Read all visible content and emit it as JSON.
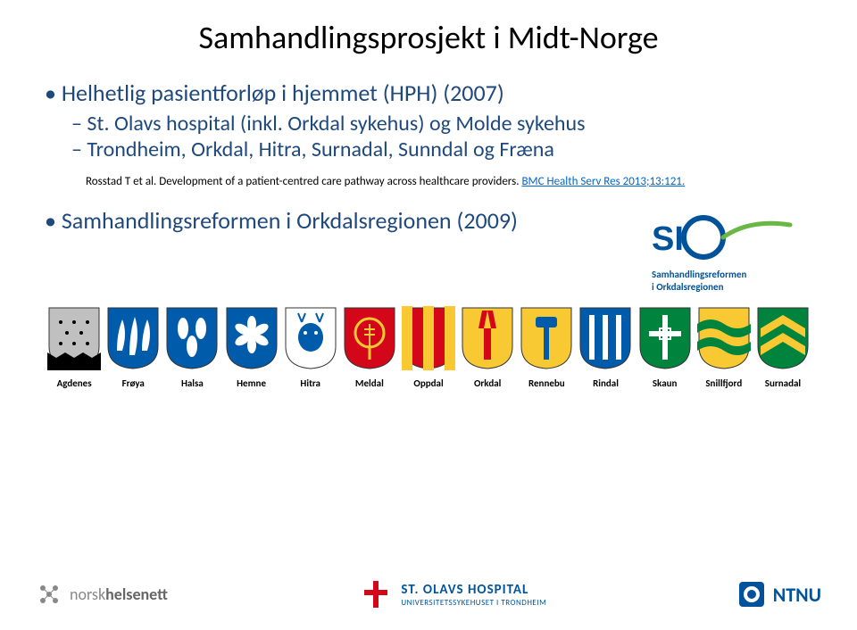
{
  "title": "Samhandlingsprosjekt i Midt-Norge",
  "main_bullet": "Helhetlig pasientforløp i hjemmet (HPH) (2007)",
  "sub1": "St. Olavs hospital (inkl. Orkdal sykehus) og Molde sykehus",
  "sub2": "Trondheim, Orkdal, Hitra, Surnadal, Sunndal og Fræna",
  "citation_plain": "Rosstad T et al. Development of a patient-centred care pathway across healthcare providers. ",
  "citation_link": "BMC Health Serv Res 2013;13:121.",
  "bullet2": "Samhandlingsreformen i Orkdalsregionen (2009)",
  "sio": {
    "line1": "Samhandlingsreformen",
    "line2": "i Orkdalsregionen"
  },
  "shields": [
    {
      "label": "Agdenes",
      "bg": "#c0c0c0",
      "fg": "#000000",
      "type": "dots"
    },
    {
      "label": "Frøya",
      "bg": "#005bab",
      "fg": "#ffffff",
      "type": "flames"
    },
    {
      "label": "Halsa",
      "bg": "#005bab",
      "fg": "#ffffff",
      "type": "leaves"
    },
    {
      "label": "Hemne",
      "bg": "#005bab",
      "fg": "#ffffff",
      "type": "flower"
    },
    {
      "label": "Hitra",
      "bg": "#ffffff",
      "fg": "#005bab",
      "type": "deer"
    },
    {
      "label": "Meldal",
      "bg": "#d4071a",
      "fg": "#f9c933",
      "type": "wheat"
    },
    {
      "label": "Oppdal",
      "bg": "#d4071a",
      "fg": "#f9c933",
      "type": "stripes"
    },
    {
      "label": "Orkdal",
      "bg": "#f9c933",
      "fg": "#d4071a",
      "type": "pall"
    },
    {
      "label": "Rennebu",
      "bg": "#f9c933",
      "fg": "#005bab",
      "type": "hammer"
    },
    {
      "label": "Rindal",
      "bg": "#005bab",
      "fg": "#ffffff",
      "type": "bars"
    },
    {
      "label": "Skaun",
      "bg": "#00843d",
      "fg": "#ffffff",
      "type": "cross"
    },
    {
      "label": "Snillfjord",
      "bg": "#f9c933",
      "fg": "#00843d",
      "type": "waves"
    },
    {
      "label": "Surnadal",
      "bg": "#00843d",
      "fg": "#f9c933",
      "type": "chevrons"
    }
  ],
  "footer": {
    "nhn_light": "norsk",
    "nhn_bold": "helsenett",
    "stolav_main": "ST. OLAVS HOSPITAL",
    "stolav_sub": "UNIVERSITETSSYKEHUSET I TRONDHEIM",
    "ntnu": "NTNU"
  },
  "colors": {
    "primary_blue": "#1f497d",
    "link_blue": "#0066cc",
    "brand_blue": "#00539b"
  }
}
